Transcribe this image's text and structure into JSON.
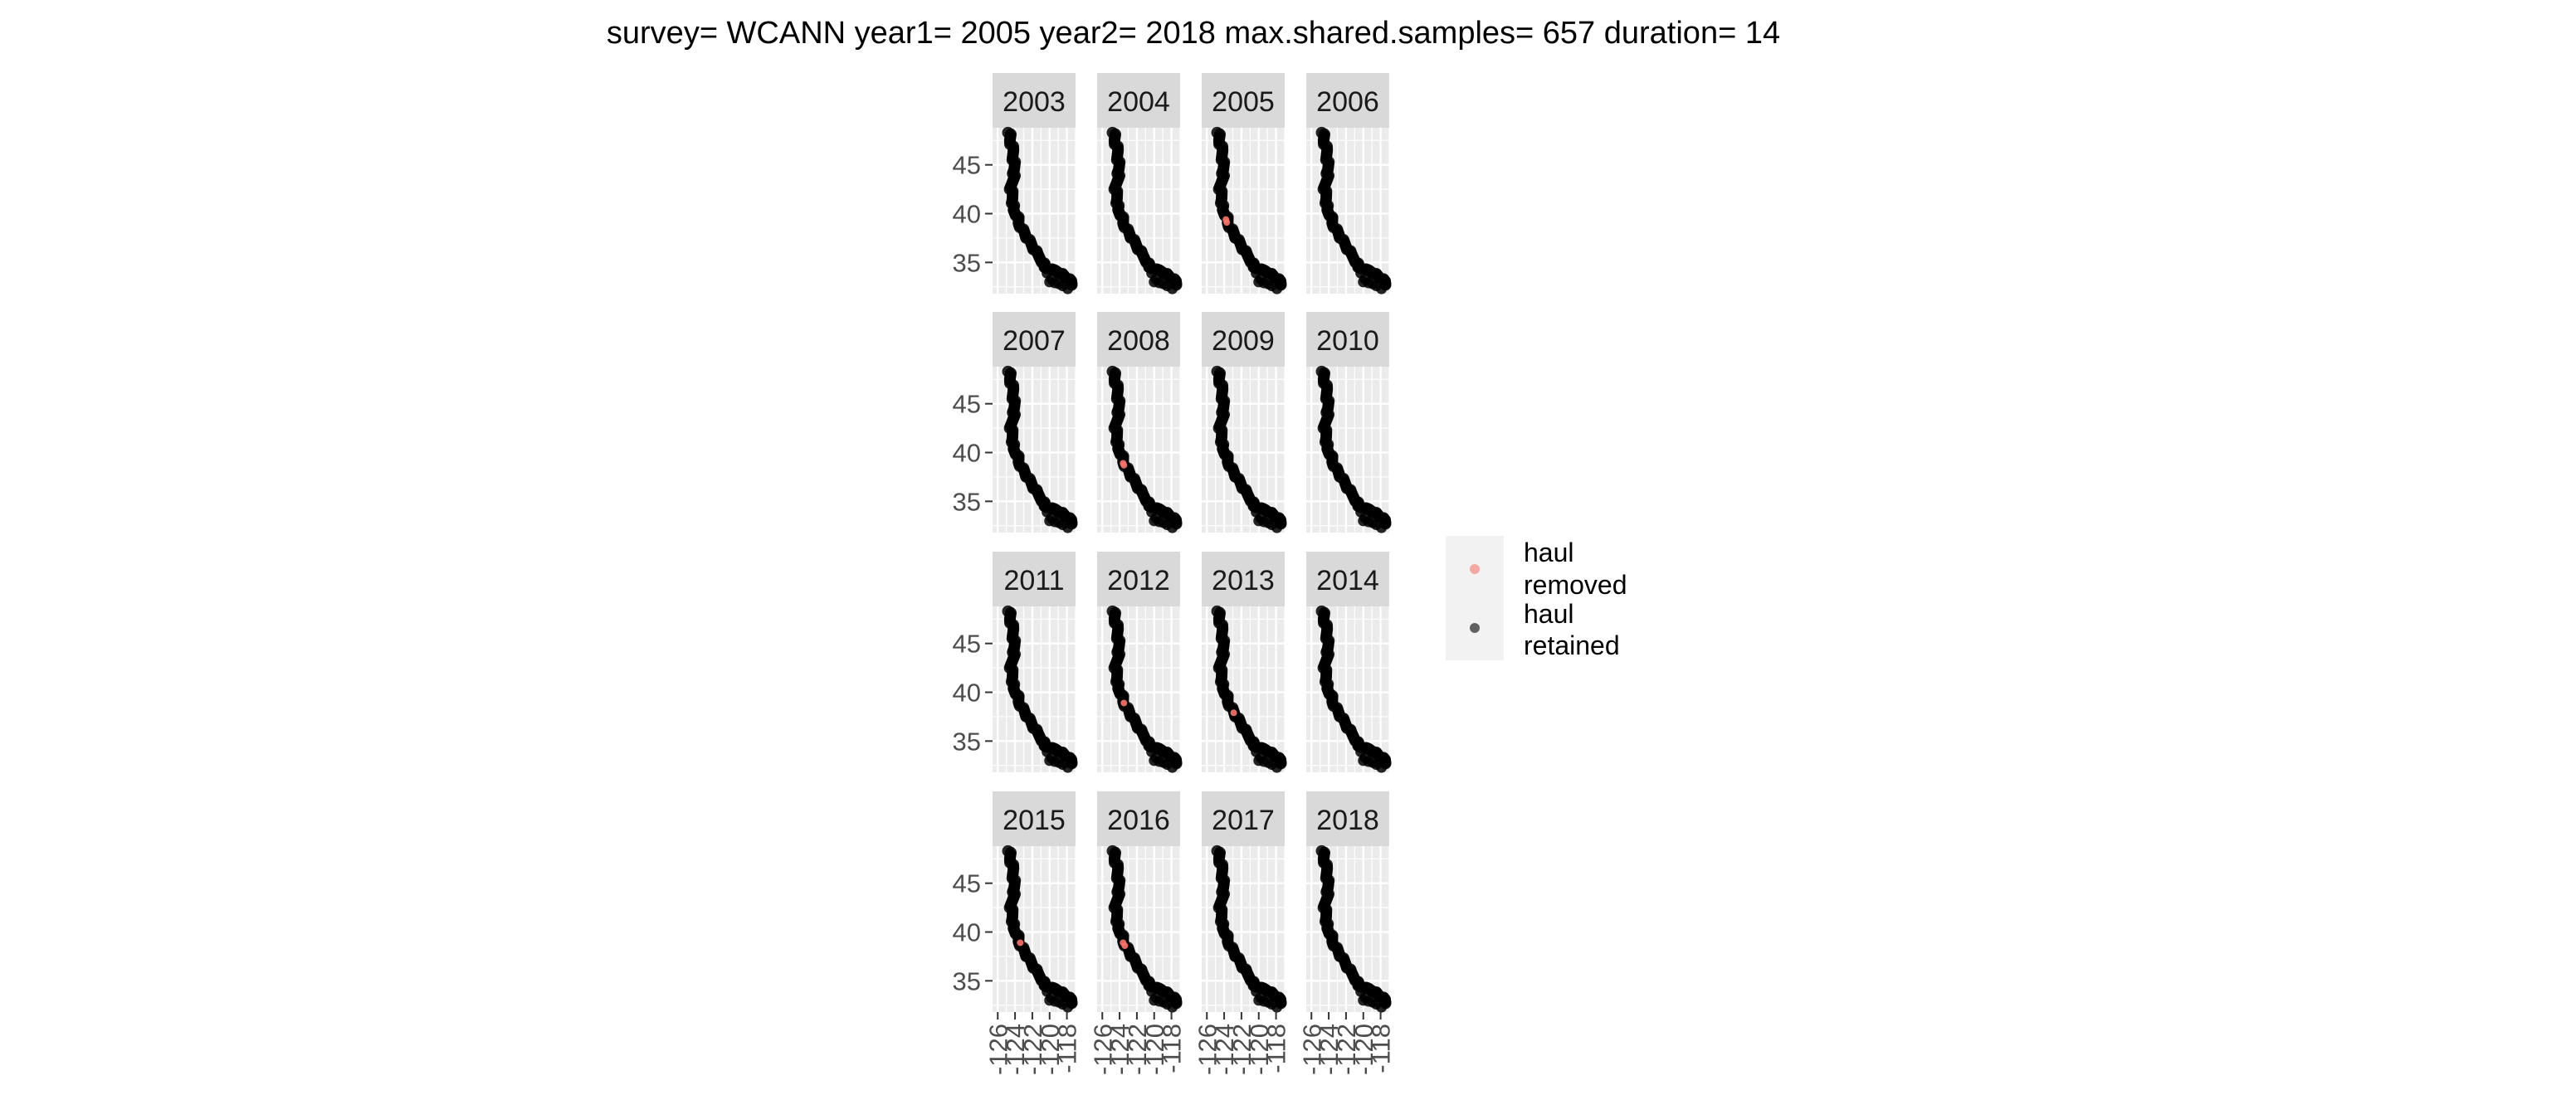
{
  "title": "survey= WCANN year1= 2005 year2= 2018 max.shared.samples= 657 duration= 14",
  "colors": {
    "panel_bg": "#ebebeb",
    "strip_bg": "#d9d9d9",
    "grid_major": "#ffffff",
    "removed": "#f8766d",
    "retained": "#000000"
  },
  "chart_data": {
    "type": "scatter",
    "facet_by": "year",
    "facets": [
      "2003",
      "2004",
      "2005",
      "2006",
      "2007",
      "2008",
      "2009",
      "2010",
      "2011",
      "2012",
      "2013",
      "2014",
      "2015",
      "2016",
      "2017",
      "2018"
    ],
    "facet_ncol": 4,
    "xlabel": "",
    "ylabel": "",
    "xlim": [
      -126.6,
      -117.0
    ],
    "ylim": [
      31.8,
      48.8
    ],
    "x_ticks": [
      -126,
      -124,
      -122,
      -120,
      -118
    ],
    "x_tick_labels": [
      "-126",
      "-124",
      "-122",
      "-120",
      "-118"
    ],
    "y_ticks": [
      35,
      40,
      45
    ],
    "y_tick_labels": [
      "35",
      "40",
      "45"
    ],
    "grid": true,
    "legend": {
      "placement": "right",
      "entries": [
        {
          "label_line1": "haul",
          "label_line2": "removed",
          "color": "#f8766d"
        },
        {
          "label_line1": "haul",
          "label_line2": "retained",
          "color": "#000000"
        }
      ]
    },
    "series": [
      {
        "name": "haul retained",
        "coastline_path": [
          [
            -124.7,
            48.3
          ],
          [
            -124.6,
            47.5
          ],
          [
            -124.3,
            46.5
          ],
          [
            -124.2,
            45.5
          ],
          [
            -124.1,
            44.5
          ],
          [
            -124.3,
            43.5
          ],
          [
            -124.5,
            42.5
          ],
          [
            -124.3,
            41.5
          ],
          [
            -124.3,
            40.4
          ],
          [
            -123.8,
            39.8
          ],
          [
            -123.6,
            39.0
          ],
          [
            -123.0,
            38.0
          ],
          [
            -122.6,
            37.5
          ],
          [
            -122.0,
            36.6
          ],
          [
            -121.5,
            35.9
          ],
          [
            -120.8,
            35.0
          ],
          [
            -120.6,
            34.5
          ],
          [
            -119.5,
            34.2
          ],
          [
            -118.8,
            33.9
          ],
          [
            -118.3,
            33.6
          ],
          [
            -117.6,
            33.1
          ],
          [
            -117.3,
            32.6
          ]
        ],
        "offshore_points": [
          [
            -120.3,
            33.9
          ],
          [
            -119.8,
            33.3
          ],
          [
            -119.4,
            32.9
          ],
          [
            -118.9,
            32.8
          ],
          [
            -118.5,
            32.6
          ],
          [
            -117.9,
            32.3
          ],
          [
            -120.0,
            33.0
          ]
        ]
      },
      {
        "name": "haul removed",
        "points_by_year": {
          "2005": [
            [
              -123.8,
              39.4
            ],
            [
              -123.7,
              39.1
            ]
          ],
          "2008": [
            [
              -123.6,
              38.9
            ],
            [
              -123.5,
              38.7
            ]
          ],
          "2012": [
            [
              -123.5,
              38.9
            ]
          ],
          "2013": [
            [
              -122.9,
              37.9
            ]
          ],
          "2015": [
            [
              -123.4,
              38.9
            ]
          ],
          "2016": [
            [
              -123.6,
              38.9
            ],
            [
              -123.4,
              38.6
            ]
          ]
        }
      }
    ]
  }
}
